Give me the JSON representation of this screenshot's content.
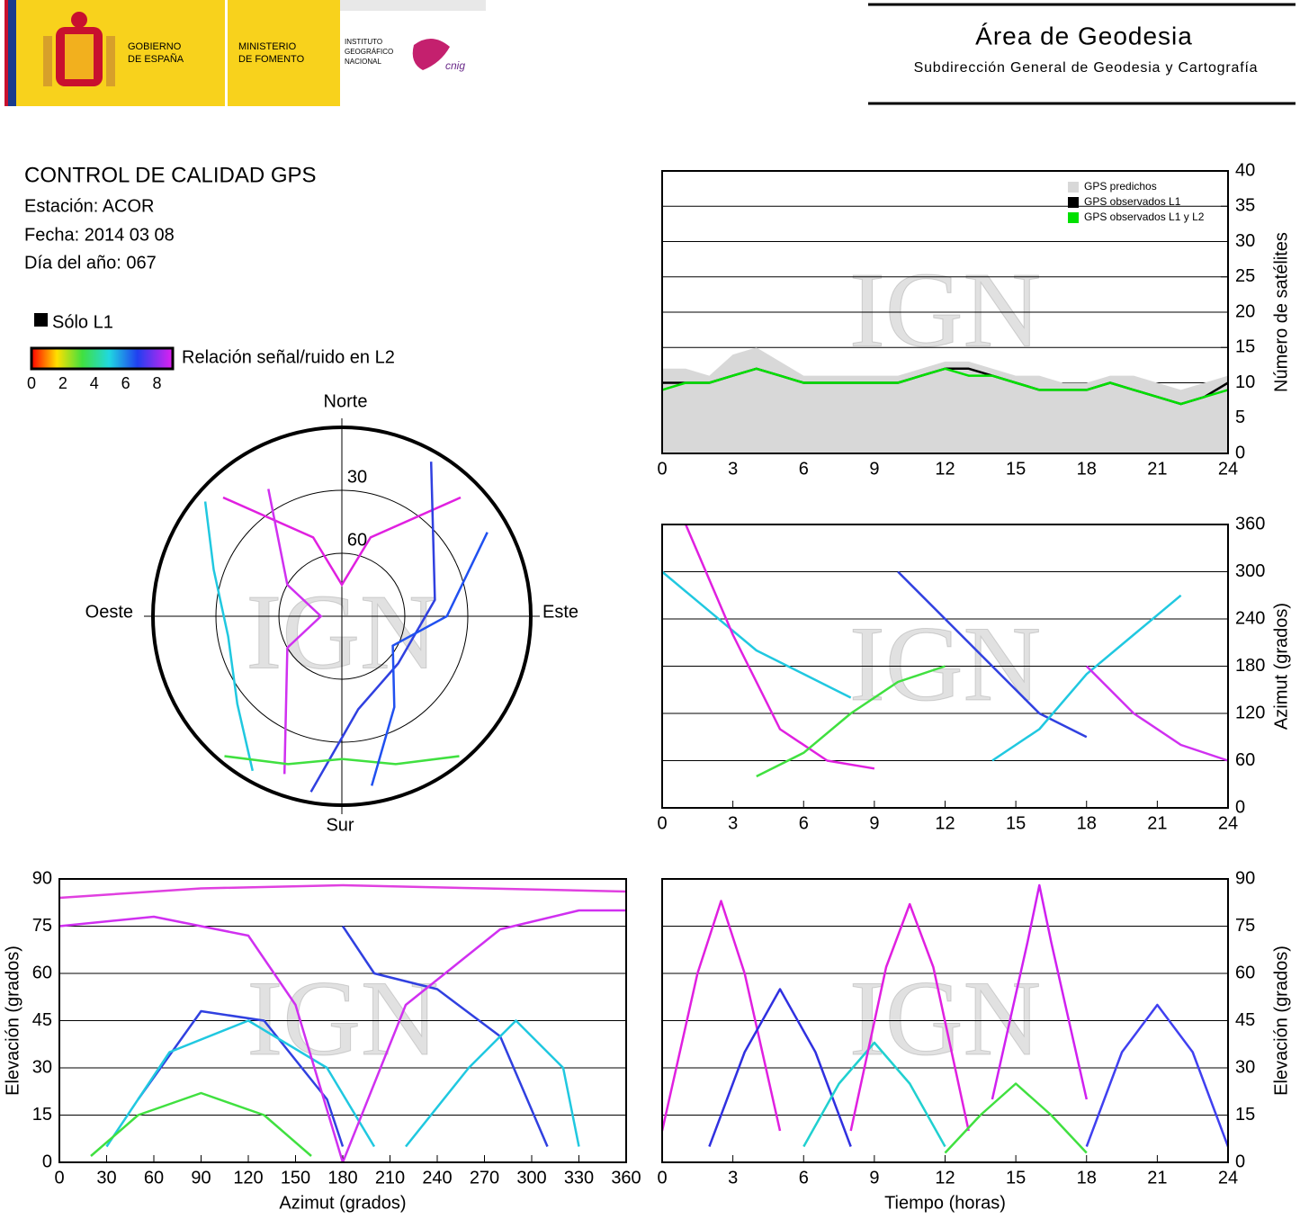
{
  "header": {
    "gobierno": [
      "GOBIERNO",
      "DE ESPAÑA"
    ],
    "ministerio": [
      "MINISTERIO",
      "DE FOMENTO"
    ],
    "instituto": [
      "INSTITUTO",
      "GEOGRÁFICO",
      "NACIONAL"
    ],
    "cnig": "cnig",
    "area": "Área de Geodesia",
    "subdireccion": "Subdirección General de Geodesia y Cartografía"
  },
  "info": {
    "title": "CONTROL DE CALIDAD GPS",
    "station": "Estación: ACOR",
    "date": "Fecha: 2014 03 08",
    "doy": "Día del año: 067"
  },
  "solo_l1": "Sólo L1",
  "color_scale": {
    "label": "Relación señal/ruido en L2",
    "ticks": [
      0,
      2,
      4,
      6,
      8
    ],
    "lim": [
      0,
      9
    ]
  },
  "watermark": "IGN",
  "chart_data": [
    {
      "type": "line",
      "y_label": "Número de satélites",
      "yaxis": "right",
      "legend": "upper right",
      "grid": true,
      "x": [
        0,
        1,
        2,
        3,
        4,
        5,
        6,
        7,
        8,
        9,
        10,
        11,
        12,
        13,
        14,
        15,
        16,
        17,
        18,
        19,
        20,
        21,
        22,
        23,
        24
      ],
      "xlim": [
        0,
        24
      ],
      "xticks": [
        0,
        3,
        6,
        9,
        12,
        15,
        18,
        21,
        24
      ],
      "ylim": [
        0,
        40
      ],
      "yticks": [
        0,
        5,
        10,
        15,
        20,
        25,
        30,
        35,
        40
      ],
      "series": [
        {
          "name": "GPS predichos",
          "color": "#d8d8d8",
          "style": "area",
          "values": [
            12,
            12,
            11,
            14,
            15,
            13,
            11,
            11,
            11,
            11,
            11,
            12,
            13,
            13,
            12,
            11,
            11,
            10,
            10,
            11,
            11,
            10,
            9,
            10,
            11
          ]
        },
        {
          "name": "GPS observados L1",
          "color": "#000000",
          "style": "line",
          "values": [
            10,
            10,
            10,
            11,
            12,
            11,
            10,
            10,
            10,
            10,
            10,
            11,
            12,
            12,
            11,
            10,
            9,
            9,
            9,
            10,
            9,
            8,
            7,
            8,
            10
          ]
        },
        {
          "name": "GPS observados L1 y L2",
          "color": "#00e000",
          "style": "line",
          "values": [
            9,
            10,
            10,
            11,
            12,
            11,
            10,
            10,
            10,
            10,
            10,
            11,
            12,
            11,
            11,
            10,
            9,
            9,
            9,
            10,
            9,
            8,
            7,
            8,
            9
          ]
        }
      ]
    },
    {
      "type": "polar",
      "directions": {
        "north": "Norte",
        "south": "Sur",
        "east": "Este",
        "west": "Oeste"
      },
      "rlim": [
        90,
        0
      ],
      "rticks": [
        30,
        60
      ],
      "series": [
        {
          "color": "#e020e0",
          "x": [
            315,
            340,
            0,
            20,
            45
          ],
          "values": [
            10,
            50,
            75,
            50,
            10
          ]
        },
        {
          "color": "#d030f0",
          "x": [
            330,
            300,
            270,
            240,
            200
          ],
          "values": [
            20,
            60,
            80,
            60,
            10
          ]
        },
        {
          "color": "#3040e0",
          "x": [
            30,
            80,
            130,
            170,
            190
          ],
          "values": [
            5,
            45,
            55,
            45,
            5
          ]
        },
        {
          "color": "#20c8e0",
          "x": [
            210,
            230,
            260,
            290,
            310
          ],
          "values": [
            5,
            25,
            35,
            25,
            5
          ]
        },
        {
          "color": "#40e040",
          "x": [
            140,
            160,
            180,
            200,
            220
          ],
          "values": [
            3,
            15,
            22,
            15,
            3
          ]
        },
        {
          "color": "#2050f0",
          "x": [
            60,
            90,
            120,
            150,
            170
          ],
          "values": [
            10,
            40,
            62,
            40,
            8
          ]
        }
      ]
    },
    {
      "type": "line",
      "y_label": "Azimut (grados)",
      "yaxis": "right",
      "grid": true,
      "xlim": [
        0,
        24
      ],
      "xticks": [
        0,
        3,
        6,
        9,
        12,
        15,
        18,
        21,
        24
      ],
      "ylim": [
        0,
        360
      ],
      "yticks": [
        0,
        60,
        120,
        180,
        240,
        300,
        360
      ],
      "series": [
        {
          "color": "#20c8e0",
          "x": [
            0,
            2,
            4,
            6,
            8
          ],
          "values": [
            300,
            250,
            200,
            170,
            140
          ]
        },
        {
          "color": "#e020e0",
          "x": [
            1,
            3,
            5,
            7,
            9
          ],
          "values": [
            360,
            220,
            100,
            60,
            50
          ]
        },
        {
          "color": "#40e040",
          "x": [
            4,
            6,
            8,
            10,
            12
          ],
          "values": [
            40,
            70,
            120,
            160,
            180
          ]
        },
        {
          "color": "#3040e0",
          "x": [
            10,
            12,
            14,
            16,
            18
          ],
          "values": [
            300,
            240,
            180,
            120,
            90
          ]
        },
        {
          "color": "#20c8e0",
          "x": [
            14,
            16,
            18,
            20,
            22
          ],
          "values": [
            60,
            100,
            170,
            220,
            270
          ]
        },
        {
          "color": "#d030f0",
          "x": [
            18,
            20,
            22,
            24
          ],
          "values": [
            180,
            120,
            80,
            60
          ]
        }
      ]
    },
    {
      "type": "line",
      "x_label": "Azimut (grados)",
      "y_label": "Elevación (grados)",
      "yaxis": "left",
      "grid": true,
      "xlim": [
        0,
        360
      ],
      "xticks": [
        0,
        30,
        60,
        90,
        120,
        150,
        180,
        210,
        240,
        270,
        300,
        330,
        360
      ],
      "ylim": [
        0,
        90
      ],
      "yticks": [
        0,
        15,
        30,
        45,
        60,
        75,
        90
      ],
      "series": [
        {
          "color": "#e040e0",
          "x": [
            0,
            90,
            180,
            270,
            360
          ],
          "values": [
            84,
            87,
            88,
            87,
            86
          ]
        },
        {
          "color": "#3040e0",
          "x": [
            50,
            90,
            130,
            170,
            180
          ],
          "values": [
            20,
            48,
            45,
            20,
            5
          ]
        },
        {
          "color": "#3040e0",
          "x": [
            180,
            200,
            240,
            280,
            310
          ],
          "values": [
            75,
            60,
            55,
            40,
            5
          ]
        },
        {
          "color": "#20c8e0",
          "x": [
            30,
            70,
            120,
            170,
            200
          ],
          "values": [
            5,
            35,
            45,
            30,
            5
          ]
        },
        {
          "color": "#20c8e0",
          "x": [
            220,
            260,
            290,
            320,
            330
          ],
          "values": [
            5,
            30,
            45,
            30,
            5
          ]
        },
        {
          "color": "#40e040",
          "x": [
            20,
            50,
            90,
            130,
            160
          ],
          "values": [
            2,
            15,
            22,
            15,
            2
          ]
        },
        {
          "color": "#d030f0",
          "x": [
            0,
            60,
            120,
            150,
            180
          ],
          "values": [
            75,
            78,
            72,
            50,
            0
          ]
        },
        {
          "color": "#d030f0",
          "x": [
            180,
            220,
            280,
            330,
            360
          ],
          "values": [
            0,
            50,
            74,
            80,
            80
          ]
        }
      ]
    },
    {
      "type": "line",
      "x_label": "Tiempo (horas)",
      "y_label": "Elevación (grados)",
      "yaxis": "right",
      "grid": true,
      "xlim": [
        0,
        24
      ],
      "xticks": [
        0,
        3,
        6,
        9,
        12,
        15,
        18,
        21,
        24
      ],
      "ylim": [
        0,
        90
      ],
      "yticks": [
        0,
        15,
        30,
        45,
        60,
        75,
        90
      ],
      "series": [
        {
          "color": "#e020e0",
          "x": [
            0,
            1.5,
            2.5,
            3.5,
            5
          ],
          "values": [
            10,
            60,
            83,
            60,
            10
          ]
        },
        {
          "color": "#3030e0",
          "x": [
            2,
            3.5,
            5,
            6.5,
            8
          ],
          "values": [
            5,
            35,
            55,
            35,
            5
          ]
        },
        {
          "color": "#20d0d0",
          "x": [
            6,
            7.5,
            9,
            10.5,
            12
          ],
          "values": [
            5,
            25,
            38,
            25,
            5
          ]
        },
        {
          "color": "#e020e0",
          "x": [
            8,
            9.5,
            10.5,
            11.5,
            13
          ],
          "values": [
            10,
            62,
            82,
            62,
            10
          ]
        },
        {
          "color": "#40e040",
          "x": [
            12,
            13.5,
            15,
            16.5,
            18
          ],
          "values": [
            3,
            15,
            25,
            15,
            3
          ]
        },
        {
          "color": "#d020f0",
          "x": [
            14,
            15.5,
            16,
            16.5,
            18
          ],
          "values": [
            20,
            70,
            88,
            70,
            20
          ]
        },
        {
          "color": "#4040f0",
          "x": [
            18,
            19.5,
            21,
            22.5,
            24
          ],
          "values": [
            5,
            35,
            50,
            35,
            5
          ]
        }
      ]
    }
  ]
}
